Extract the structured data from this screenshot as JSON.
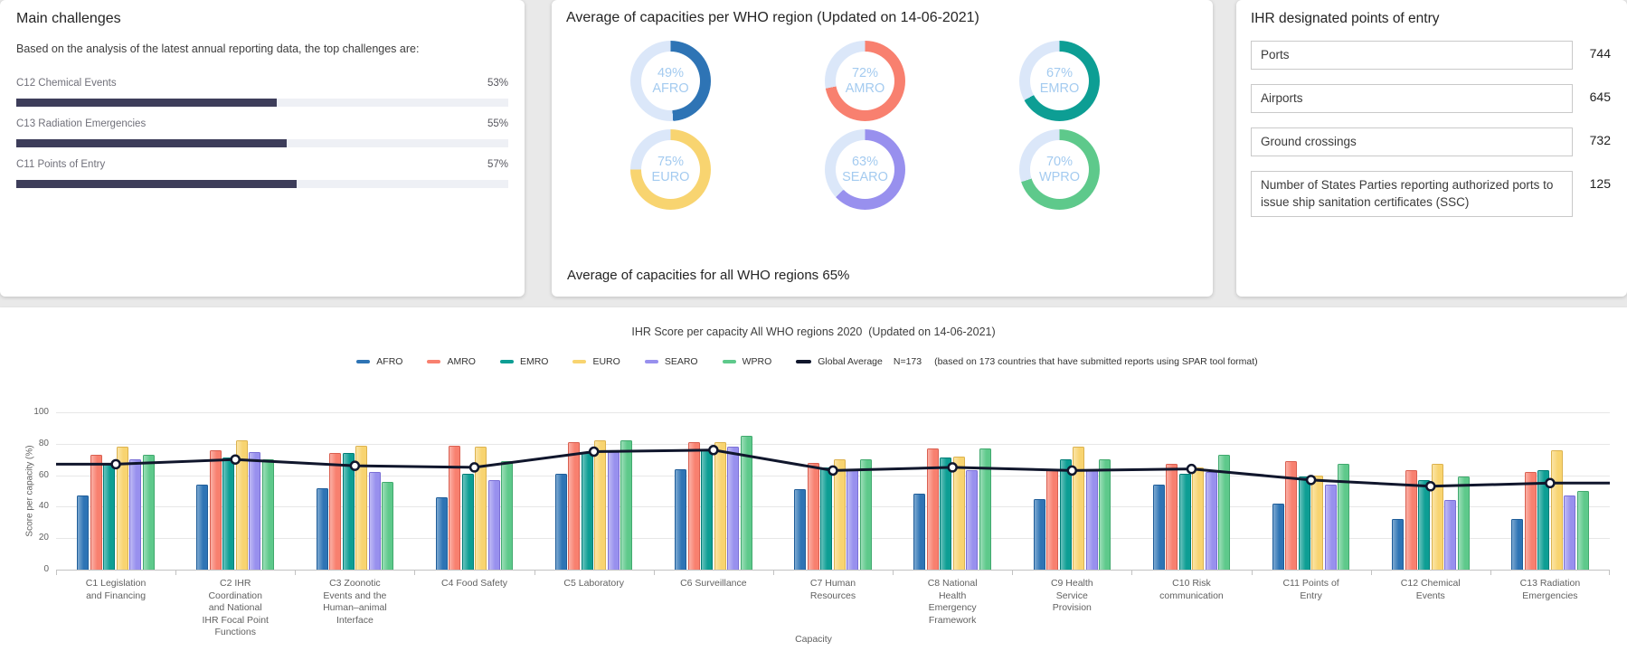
{
  "cards": {
    "main_challenges": {
      "title": "Main challenges",
      "subtitle": "Based on the analysis of the latest annual reporting data, the top challenges are:",
      "bar_color": "#3d3d5a",
      "track_color": "#eef0f5",
      "items": [
        {
          "label": "C12 Chemical Events",
          "value": "53%",
          "pct": 53
        },
        {
          "label": "C13 Radiation Emergencies",
          "value": "55%",
          "pct": 55
        },
        {
          "label": "C11 Points of Entry",
          "value": "57%",
          "pct": 57
        }
      ]
    },
    "region_capacities": {
      "title": "Average of capacities per WHO region (Updated on 14-06-2021)",
      "footer": "Average of capacities for all WHO regions 65%",
      "track_color": "#dbe7f9",
      "label_color": "#a4cbf0",
      "donuts": [
        {
          "region": "AFRO",
          "pct": 49,
          "color": "#2e74b5"
        },
        {
          "region": "AMRO",
          "pct": 72,
          "color": "#f8806f"
        },
        {
          "region": "EMRO",
          "pct": 67,
          "color": "#0d9e94"
        },
        {
          "region": "EURO",
          "pct": 75,
          "color": "#f8d470"
        },
        {
          "region": "SEARO",
          "pct": 63,
          "color": "#9890ee"
        },
        {
          "region": "WPRO",
          "pct": 70,
          "color": "#5ec98b"
        }
      ]
    },
    "points_of_entry": {
      "title": "IHR designated points of entry",
      "rows": [
        {
          "label": "Ports",
          "value": "744"
        },
        {
          "label": "Airports",
          "value": "645"
        },
        {
          "label": "Ground crossings",
          "value": "732"
        },
        {
          "label": "Number of States Parties reporting authorized ports to issue ship sanitation certificates (SSC)",
          "value": "125"
        }
      ]
    }
  },
  "chart_data": [
    {
      "type": "bar",
      "title": "IHR Score per capacity All WHO regions 2020  (Updated on 14-06-2021)",
      "xlabel": "Capacity",
      "ylabel": "Score per capacity (%)",
      "ylim": [
        0,
        100
      ],
      "yticks": [
        0,
        20,
        40,
        60,
        80,
        100
      ],
      "grid": true,
      "legend_position": "top",
      "legend_notes": [
        "N=173",
        "(based on 173 countries that have submitted reports using SPAR tool format)"
      ],
      "categories": [
        [
          "C1 Legislation",
          "and Financing"
        ],
        [
          "C2 IHR",
          "Coordination",
          "and National",
          "IHR Focal Point",
          "Functions"
        ],
        [
          "C3 Zoonotic",
          "Events and the",
          "Human–animal",
          "Interface"
        ],
        [
          "C4 Food Safety"
        ],
        [
          "C5 Laboratory"
        ],
        [
          "C6 Surveillance"
        ],
        [
          "C7 Human",
          "Resources"
        ],
        [
          "C8 National",
          "Health",
          "Emergency",
          "Framework"
        ],
        [
          "C9 Health",
          "Service",
          "Provision"
        ],
        [
          "C10 Risk",
          "communication"
        ],
        [
          "C11 Points of",
          "Entry"
        ],
        [
          "C12 Chemical",
          "Events"
        ],
        [
          "C13 Radiation",
          "Emergencies"
        ]
      ],
      "series": [
        {
          "name": "AFRO",
          "color": "#2e74b5",
          "border": "#1f5d99",
          "values": [
            47,
            54,
            52,
            46,
            61,
            64,
            51,
            48,
            45,
            54,
            42,
            32,
            32
          ]
        },
        {
          "name": "AMRO",
          "color": "#f8806f",
          "border": "#d95f50",
          "values": [
            73,
            76,
            74,
            79,
            81,
            81,
            68,
            77,
            63,
            67,
            69,
            63,
            62
          ]
        },
        {
          "name": "EMRO",
          "color": "#0d9e94",
          "border": "#007d76",
          "values": [
            68,
            71,
            74,
            61,
            74,
            76,
            65,
            71,
            70,
            61,
            59,
            57,
            63
          ]
        },
        {
          "name": "EURO",
          "color": "#f8d470",
          "border": "#dcb24e",
          "values": [
            78,
            82,
            79,
            78,
            82,
            81,
            70,
            72,
            78,
            65,
            60,
            67,
            76
          ]
        },
        {
          "name": "SEARO",
          "color": "#9890ee",
          "border": "#7a6fd6",
          "values": [
            70,
            75,
            62,
            57,
            75,
            78,
            63,
            63,
            64,
            62,
            54,
            44,
            47
          ]
        },
        {
          "name": "WPRO",
          "color": "#5ec98b",
          "border": "#41a96e",
          "values": [
            73,
            70,
            56,
            69,
            82,
            85,
            70,
            77,
            70,
            73,
            67,
            59,
            50
          ]
        }
      ],
      "line_series": {
        "name": "Global Average",
        "color": "#10162c",
        "values": [
          67,
          70,
          66,
          65,
          75,
          76,
          63,
          65,
          63,
          64,
          57,
          53,
          55
        ]
      }
    },
    {
      "type": "pie",
      "title": "Average of capacities per WHO region (Updated on 14-06-2021)",
      "note": "Average of capacities for all WHO regions 65%",
      "series": [
        {
          "name": "AFRO",
          "value": 49
        },
        {
          "name": "AMRO",
          "value": 72
        },
        {
          "name": "EMRO",
          "value": 67
        },
        {
          "name": "EURO",
          "value": 75
        },
        {
          "name": "SEARO",
          "value": 63
        },
        {
          "name": "WPRO",
          "value": 70
        }
      ]
    },
    {
      "type": "bar",
      "orientation": "horizontal",
      "title": "Main challenges",
      "categories": [
        "C12 Chemical Events",
        "C13 Radiation Emergencies",
        "C11 Points of Entry"
      ],
      "values": [
        53,
        55,
        57
      ],
      "xlim": [
        0,
        100
      ]
    }
  ]
}
